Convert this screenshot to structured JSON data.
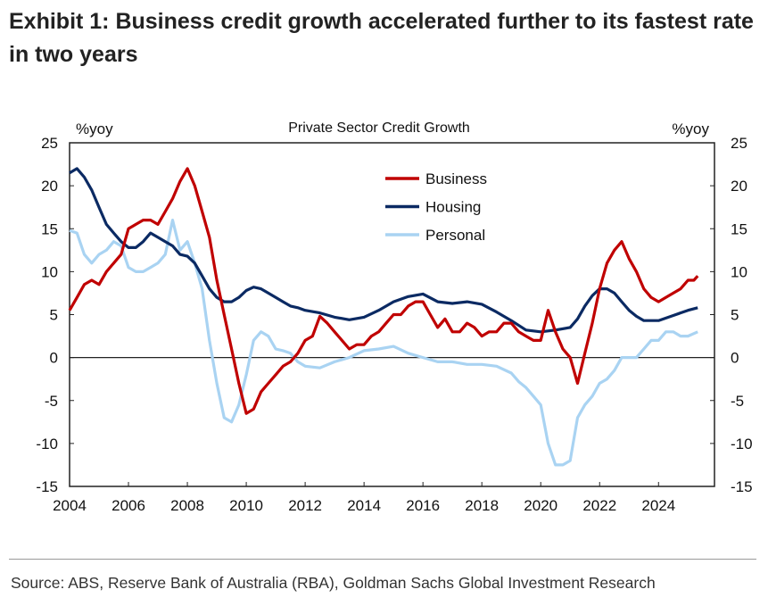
{
  "title": "Exhibit 1: Business credit growth accelerated further to its fastest rate in two years",
  "source": "Source: ABS, Reserve Bank of Australia (RBA), Goldman Sachs Global Investment Research",
  "chart_data": {
    "type": "line",
    "title": "Private Sector Credit Growth",
    "ylabel_left": "%yoy",
    "ylabel_right": "%yoy",
    "xlim": [
      2004,
      2025.9
    ],
    "ylim": [
      -15,
      25
    ],
    "xticks": [
      2004,
      2006,
      2008,
      2010,
      2012,
      2014,
      2016,
      2018,
      2020,
      2022,
      2024
    ],
    "yticks": [
      -15,
      -10,
      -5,
      0,
      5,
      10,
      15,
      20,
      25
    ],
    "legend_position": "top-center",
    "grid": false,
    "series": [
      {
        "name": "Business",
        "color": "#c00000",
        "points": [
          [
            2004,
            5.5
          ],
          [
            2004.25,
            7
          ],
          [
            2004.5,
            8.5
          ],
          [
            2004.75,
            9
          ],
          [
            2005,
            8.5
          ],
          [
            2005.25,
            10
          ],
          [
            2005.5,
            11
          ],
          [
            2005.75,
            12
          ],
          [
            2006,
            15
          ],
          [
            2006.25,
            15.5
          ],
          [
            2006.5,
            16
          ],
          [
            2006.75,
            16
          ],
          [
            2007,
            15.5
          ],
          [
            2007.25,
            17
          ],
          [
            2007.5,
            18.5
          ],
          [
            2007.75,
            20.5
          ],
          [
            2008,
            22
          ],
          [
            2008.25,
            20
          ],
          [
            2008.5,
            17
          ],
          [
            2008.75,
            14
          ],
          [
            2009,
            9
          ],
          [
            2009.25,
            5
          ],
          [
            2009.5,
            1
          ],
          [
            2009.75,
            -3
          ],
          [
            2010,
            -6.5
          ],
          [
            2010.25,
            -6
          ],
          [
            2010.5,
            -4
          ],
          [
            2010.75,
            -3
          ],
          [
            2011,
            -2
          ],
          [
            2011.25,
            -1
          ],
          [
            2011.5,
            -0.5
          ],
          [
            2011.75,
            0.5
          ],
          [
            2012,
            2
          ],
          [
            2012.25,
            2.5
          ],
          [
            2012.5,
            4.8
          ],
          [
            2012.75,
            4
          ],
          [
            2013,
            3
          ],
          [
            2013.25,
            2
          ],
          [
            2013.5,
            1
          ],
          [
            2013.75,
            1.5
          ],
          [
            2014,
            1.5
          ],
          [
            2014.25,
            2.5
          ],
          [
            2014.5,
            3
          ],
          [
            2014.75,
            4
          ],
          [
            2015,
            5
          ],
          [
            2015.25,
            5
          ],
          [
            2015.5,
            6
          ],
          [
            2015.75,
            6.5
          ],
          [
            2016,
            6.5
          ],
          [
            2016.25,
            5
          ],
          [
            2016.5,
            3.5
          ],
          [
            2016.75,
            4.5
          ],
          [
            2017,
            3
          ],
          [
            2017.25,
            3
          ],
          [
            2017.5,
            4
          ],
          [
            2017.75,
            3.5
          ],
          [
            2018,
            2.5
          ],
          [
            2018.25,
            3
          ],
          [
            2018.5,
            3
          ],
          [
            2018.75,
            4
          ],
          [
            2019,
            4
          ],
          [
            2019.25,
            3
          ],
          [
            2019.5,
            2.5
          ],
          [
            2019.75,
            2
          ],
          [
            2020,
            2
          ],
          [
            2020.25,
            5.5
          ],
          [
            2020.5,
            3
          ],
          [
            2020.75,
            1
          ],
          [
            2021,
            0
          ],
          [
            2021.25,
            -3
          ],
          [
            2021.5,
            0.5
          ],
          [
            2021.75,
            4
          ],
          [
            2022,
            8
          ],
          [
            2022.25,
            11
          ],
          [
            2022.5,
            12.5
          ],
          [
            2022.75,
            13.5
          ],
          [
            2023,
            11.5
          ],
          [
            2023.25,
            10
          ],
          [
            2023.5,
            8
          ],
          [
            2023.75,
            7
          ],
          [
            2024,
            6.5
          ],
          [
            2024.25,
            7
          ],
          [
            2024.5,
            7.5
          ],
          [
            2024.75,
            8
          ],
          [
            2025,
            9
          ],
          [
            2025.2,
            9
          ],
          [
            2025.33,
            9.5
          ]
        ]
      },
      {
        "name": "Housing",
        "color": "#0b2a63",
        "points": [
          [
            2004,
            21.5
          ],
          [
            2004.25,
            22
          ],
          [
            2004.5,
            21
          ],
          [
            2004.75,
            19.5
          ],
          [
            2005,
            17.5
          ],
          [
            2005.25,
            15.5
          ],
          [
            2005.5,
            14.5
          ],
          [
            2005.75,
            13.5
          ],
          [
            2006,
            12.8
          ],
          [
            2006.25,
            12.8
          ],
          [
            2006.5,
            13.5
          ],
          [
            2006.75,
            14.5
          ],
          [
            2007,
            14
          ],
          [
            2007.25,
            13.5
          ],
          [
            2007.5,
            13
          ],
          [
            2007.75,
            12
          ],
          [
            2008,
            11.8
          ],
          [
            2008.25,
            11
          ],
          [
            2008.5,
            9.5
          ],
          [
            2008.75,
            8
          ],
          [
            2009,
            7
          ],
          [
            2009.25,
            6.5
          ],
          [
            2009.5,
            6.5
          ],
          [
            2009.75,
            7
          ],
          [
            2010,
            7.8
          ],
          [
            2010.25,
            8.2
          ],
          [
            2010.5,
            8
          ],
          [
            2010.75,
            7.5
          ],
          [
            2011,
            7
          ],
          [
            2011.25,
            6.5
          ],
          [
            2011.5,
            6
          ],
          [
            2011.75,
            5.8
          ],
          [
            2012,
            5.5
          ],
          [
            2012.5,
            5.2
          ],
          [
            2013,
            4.7
          ],
          [
            2013.5,
            4.4
          ],
          [
            2014,
            4.7
          ],
          [
            2014.5,
            5.5
          ],
          [
            2015,
            6.5
          ],
          [
            2015.5,
            7.1
          ],
          [
            2016,
            7.4
          ],
          [
            2016.5,
            6.5
          ],
          [
            2017,
            6.3
          ],
          [
            2017.5,
            6.5
          ],
          [
            2018,
            6.2
          ],
          [
            2018.5,
            5.3
          ],
          [
            2019,
            4.3
          ],
          [
            2019.5,
            3.2
          ],
          [
            2020,
            3.0
          ],
          [
            2020.5,
            3.2
          ],
          [
            2021,
            3.5
          ],
          [
            2021.25,
            4.5
          ],
          [
            2021.5,
            6
          ],
          [
            2021.75,
            7.2
          ],
          [
            2022,
            8.0
          ],
          [
            2022.25,
            8
          ],
          [
            2022.5,
            7.5
          ],
          [
            2022.75,
            6.5
          ],
          [
            2023,
            5.5
          ],
          [
            2023.25,
            4.8
          ],
          [
            2023.5,
            4.3
          ],
          [
            2024,
            4.3
          ],
          [
            2024.5,
            4.9
          ],
          [
            2025,
            5.5
          ],
          [
            2025.33,
            5.8
          ]
        ]
      },
      {
        "name": "Personal",
        "color": "#a9d3f2",
        "points": [
          [
            2004,
            14.8
          ],
          [
            2004.25,
            14.5
          ],
          [
            2004.5,
            12
          ],
          [
            2004.75,
            11
          ],
          [
            2005,
            12
          ],
          [
            2005.25,
            12.5
          ],
          [
            2005.5,
            13.5
          ],
          [
            2005.75,
            13
          ],
          [
            2006,
            10.5
          ],
          [
            2006.25,
            10
          ],
          [
            2006.5,
            10
          ],
          [
            2006.75,
            10.5
          ],
          [
            2007,
            11
          ],
          [
            2007.25,
            12
          ],
          [
            2007.5,
            16
          ],
          [
            2007.75,
            12.5
          ],
          [
            2008,
            13.5
          ],
          [
            2008.25,
            11
          ],
          [
            2008.5,
            8
          ],
          [
            2008.75,
            2
          ],
          [
            2009,
            -3
          ],
          [
            2009.25,
            -7
          ],
          [
            2009.5,
            -7.5
          ],
          [
            2009.75,
            -5.5
          ],
          [
            2010,
            -2
          ],
          [
            2010.25,
            2
          ],
          [
            2010.5,
            3
          ],
          [
            2010.75,
            2.5
          ],
          [
            2011,
            1
          ],
          [
            2011.25,
            0.8
          ],
          [
            2011.5,
            0.5
          ],
          [
            2011.75,
            -0.5
          ],
          [
            2012,
            -1
          ],
          [
            2012.5,
            -1.2
          ],
          [
            2013,
            -0.5
          ],
          [
            2013.5,
            0
          ],
          [
            2014,
            0.8
          ],
          [
            2014.5,
            1
          ],
          [
            2015,
            1.3
          ],
          [
            2015.5,
            0.5
          ],
          [
            2016,
            0
          ],
          [
            2016.5,
            -0.5
          ],
          [
            2017,
            -0.5
          ],
          [
            2017.5,
            -0.8
          ],
          [
            2018,
            -0.8
          ],
          [
            2018.5,
            -1
          ],
          [
            2019,
            -1.8
          ],
          [
            2019.25,
            -2.8
          ],
          [
            2019.5,
            -3.5
          ],
          [
            2019.75,
            -4.5
          ],
          [
            2020,
            -5.5
          ],
          [
            2020.25,
            -10
          ],
          [
            2020.5,
            -12.5
          ],
          [
            2020.75,
            -12.5
          ],
          [
            2021,
            -12
          ],
          [
            2021.25,
            -7
          ],
          [
            2021.5,
            -5.5
          ],
          [
            2021.75,
            -4.5
          ],
          [
            2022,
            -3
          ],
          [
            2022.25,
            -2.5
          ],
          [
            2022.5,
            -1.5
          ],
          [
            2022.75,
            0
          ],
          [
            2023,
            0
          ],
          [
            2023.25,
            0
          ],
          [
            2023.5,
            1
          ],
          [
            2023.75,
            2
          ],
          [
            2024,
            2
          ],
          [
            2024.25,
            3
          ],
          [
            2024.5,
            3
          ],
          [
            2024.75,
            2.5
          ],
          [
            2025,
            2.5
          ],
          [
            2025.33,
            3
          ]
        ]
      }
    ]
  }
}
